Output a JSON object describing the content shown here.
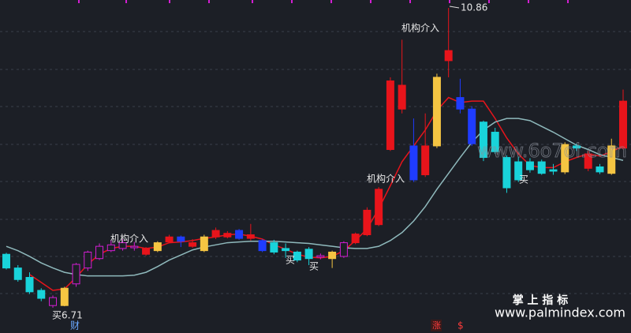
{
  "chart_data": {
    "type": "candlestick",
    "categories": [
      null,
      null,
      null,
      null,
      null,
      null,
      null,
      null,
      null,
      null,
      null,
      null,
      null,
      null,
      null,
      null,
      null,
      null,
      null,
      null,
      null,
      null,
      null,
      null,
      null,
      null,
      null,
      null,
      null,
      null,
      null,
      null,
      null,
      null,
      null,
      null,
      null,
      null,
      null,
      null,
      null,
      null,
      null,
      null,
      null,
      null,
      null,
      null,
      null,
      null,
      null,
      null,
      null,
      null
    ],
    "open": [
      7.45,
      7.26,
      7.13,
      6.95,
      6.74,
      6.74,
      7.04,
      7.26,
      7.39,
      7.5,
      7.53,
      7.54,
      7.45,
      7.5,
      7.62,
      7.63,
      7.56,
      7.5,
      7.69,
      7.69,
      7.67,
      7.67,
      7.64,
      7.61,
      7.53,
      7.48,
      7.52,
      7.41,
      7.39,
      7.42,
      7.61,
      7.72,
      7.86,
      8.9,
      9.46,
      8.48,
      8.55,
      8.95,
      10.13,
      9.46,
      9.46,
      9.28,
      9.14,
      8.79,
      8.73,
      8.62,
      8.73,
      8.62,
      8.59,
      8.95,
      8.64,
      8.66,
      8.57,
      8.92
    ],
    "close": [
      7.26,
      7.1,
      6.93,
      6.84,
      6.85,
      6.98,
      7.31,
      7.48,
      7.56,
      7.58,
      7.61,
      7.56,
      7.53,
      7.61,
      7.69,
      7.69,
      7.61,
      7.69,
      7.78,
      7.74,
      7.78,
      7.72,
      7.5,
      7.48,
      7.5,
      7.37,
      7.39,
      7.43,
      7.48,
      7.61,
      7.73,
      8.06,
      8.35,
      9.85,
      9.79,
      8.95,
      8.95,
      9.9,
      10.27,
      9.62,
      8.98,
      8.79,
      8.87,
      8.37,
      8.48,
      8.73,
      8.57,
      8.6,
      8.97,
      8.92,
      8.84,
      8.59,
      8.95,
      9.57
    ],
    "high": [
      7.47,
      7.3,
      7.2,
      6.98,
      6.88,
      7.0,
      7.33,
      7.5,
      7.6,
      7.65,
      7.66,
      7.62,
      7.55,
      7.63,
      7.72,
      7.71,
      7.66,
      7.72,
      7.82,
      7.77,
      7.8,
      7.87,
      7.66,
      7.65,
      7.6,
      7.5,
      7.55,
      7.46,
      7.5,
      7.63,
      7.75,
      8.1,
      8.38,
      9.9,
      10.42,
      9.33,
      9.4,
      9.95,
      10.86,
      9.88,
      9.5,
      9.3,
      9.2,
      8.82,
      8.8,
      8.78,
      8.76,
      8.7,
      9.0,
      8.98,
      8.88,
      8.7,
      9.05,
      9.73
    ],
    "low": [
      7.24,
      7.07,
      6.9,
      6.8,
      6.71,
      6.73,
      7.0,
      7.22,
      7.37,
      7.48,
      7.5,
      7.5,
      7.43,
      7.48,
      7.6,
      7.55,
      7.54,
      7.48,
      7.66,
      7.67,
      7.65,
      7.64,
      7.48,
      7.45,
      7.4,
      7.34,
      7.3,
      7.38,
      7.26,
      7.4,
      7.59,
      7.7,
      7.84,
      8.88,
      9.4,
      8.45,
      8.52,
      8.92,
      9.9,
      9.4,
      8.95,
      8.74,
      8.84,
      8.3,
      8.45,
      8.58,
      8.55,
      8.55,
      8.56,
      8.88,
      8.6,
      8.56,
      8.55,
      8.9
    ],
    "colors": [
      "#19d3da",
      "#19d3da",
      "#19d3da",
      "#19d3da",
      "#d21ed2",
      "#f5c542",
      "#d21ed2",
      "#d21ed2",
      "#d21ed2",
      "#d21ed2",
      "#d21ed2",
      "#d21ed2",
      "#e8141b",
      "#f5c542",
      "#e8141b",
      "#1f3cff",
      "#e8141b",
      "#f5c542",
      "#e8141b",
      "#e8141b",
      "#1f3cff",
      "#e8141b",
      "#1f3cff",
      "#19d3da",
      "#19d3da",
      "#19d3da",
      "#19d3da",
      "#d21ed2",
      "#f5c542",
      "#d21ed2",
      "#e8141b",
      "#e8141b",
      "#e8141b",
      "#e8141b",
      "#e8141b",
      "#1f3cff",
      "#e8141b",
      "#f5c542",
      "#e8141b",
      "#1f3cff",
      "#1f3cff",
      "#19d3da",
      "#19d3da",
      "#19d3da",
      "#19d3da",
      "#19d3da",
      "#19d3da",
      "#19d3da",
      "#f5c542",
      "#19d3da",
      "#e8141b",
      "#19d3da",
      "#f5c542",
      "#e8141b"
    ],
    "hollow": [
      false,
      false,
      false,
      false,
      true,
      false,
      true,
      true,
      true,
      true,
      true,
      true,
      false,
      false,
      false,
      false,
      false,
      false,
      false,
      false,
      false,
      false,
      false,
      false,
      false,
      false,
      false,
      true,
      false,
      true,
      false,
      false,
      false,
      false,
      false,
      false,
      false,
      false,
      false,
      false,
      false,
      false,
      false,
      false,
      false,
      false,
      false,
      false,
      false,
      false,
      false,
      false,
      false,
      false
    ],
    "lines": [
      {
        "color": "#e8141b",
        "values": [
          null,
          null,
          7.17,
          7.06,
          6.95,
          6.97,
          7.13,
          7.31,
          7.45,
          7.53,
          7.56,
          7.56,
          7.53,
          7.55,
          7.61,
          7.62,
          7.64,
          7.67,
          7.69,
          7.72,
          7.73,
          7.7,
          7.66,
          7.58,
          7.52,
          7.45,
          7.41,
          7.4,
          7.42,
          7.5,
          7.64,
          7.8,
          8.08,
          8.4,
          8.73,
          8.95,
          9.17,
          9.44,
          9.62,
          9.55,
          9.57,
          9.57,
          9.33,
          9.06,
          8.84,
          8.68,
          8.65,
          8.65,
          8.73,
          8.79,
          8.84,
          8.81,
          8.87,
          8.95
        ]
      },
      {
        "color": "#8fb9bc",
        "values": [
          7.56,
          7.5,
          7.42,
          7.33,
          7.26,
          7.2,
          7.17,
          7.15,
          7.15,
          7.15,
          7.15,
          7.16,
          7.2,
          7.28,
          7.37,
          7.44,
          7.51,
          7.55,
          7.58,
          7.61,
          7.62,
          7.63,
          7.63,
          7.63,
          7.62,
          7.61,
          7.6,
          7.58,
          7.56,
          7.54,
          7.53,
          7.53,
          7.56,
          7.64,
          7.75,
          7.91,
          8.11,
          8.35,
          8.57,
          8.79,
          9.0,
          9.17,
          9.28,
          9.33,
          9.33,
          9.3,
          9.22,
          9.14,
          9.05,
          8.96,
          8.9,
          8.83,
          8.79,
          8.75
        ]
      }
    ],
    "ylim": [
      6.36,
      10.97
    ],
    "annotations": {
      "high_label": "10.86",
      "low_label": "买6.71",
      "institution": [
        "机构介入",
        "机构介入",
        "机构介入"
      ],
      "buy": [
        "买",
        "买",
        "买",
        "买"
      ],
      "cai": "财",
      "zhang": "涨",
      "dollar": "$",
      "watermark": "www.6o7ol.com",
      "brand": "掌 上 指 标",
      "site": "www.palmindex.com"
    }
  }
}
